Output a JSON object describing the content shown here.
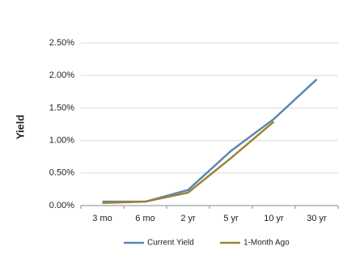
{
  "chart_data": {
    "type": "line",
    "y_label": "Yield",
    "categories": [
      "3 mo",
      "6 mo",
      "2 yr",
      "5 yr",
      "10 yr",
      "30 yr"
    ],
    "series": [
      {
        "name": "Current Yield",
        "color": "#5b87b0",
        "values": [
          0.06,
          0.06,
          0.24,
          0.84,
          1.33,
          1.94
        ]
      },
      {
        "name": "1-Month Ago",
        "color": "#9c8434",
        "values": [
          0.04,
          0.06,
          0.2,
          0.73,
          1.29,
          null
        ]
      }
    ],
    "ylim": [
      0,
      2.5
    ],
    "yticks": [
      {
        "value": 0,
        "label": "0.00%"
      },
      {
        "value": 0.5,
        "label": "0.50%"
      },
      {
        "value": 1,
        "label": "1.00%"
      },
      {
        "value": 1.5,
        "label": "1.50%"
      },
      {
        "value": 2,
        "label": "2.00%"
      },
      {
        "value": 2.5,
        "label": "2.50%"
      }
    ],
    "grid": true,
    "legend": "bottom"
  }
}
